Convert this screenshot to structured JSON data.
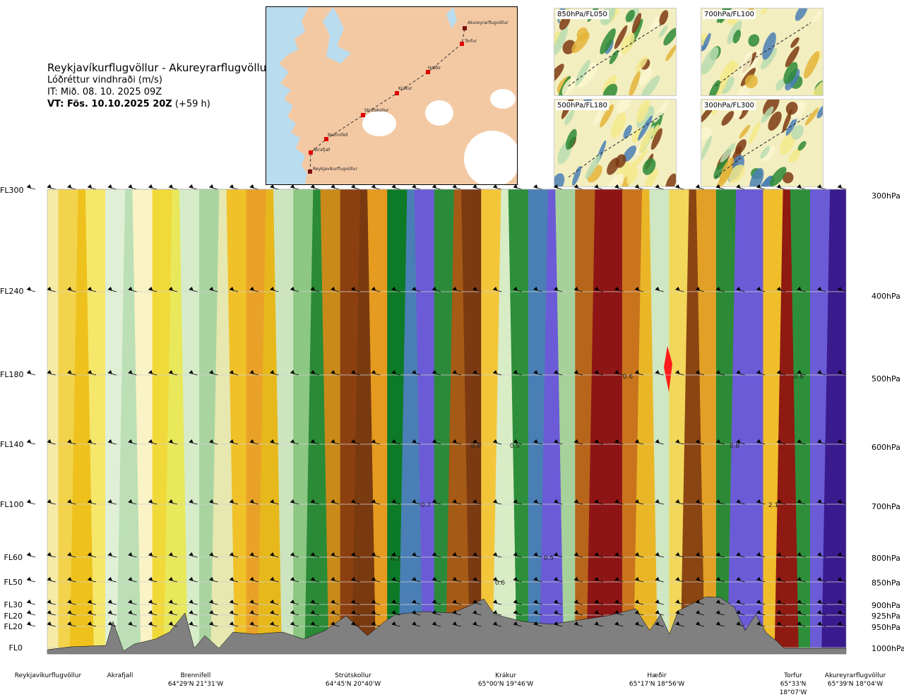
{
  "header": {
    "route": "Reykjavíkurflugvöllur - Akureyrarflugvöllur",
    "subtitle": "Lóðréttur vindhraði (m/s)",
    "issue_time": "IT: Mið. 08. 10. 2025 09Z",
    "valid_time_bold": "VT: Fös. 10.10.2025 20Z",
    "valid_time_offset": "(+59 h)"
  },
  "map": {
    "points": [
      "Akureyrarflugvöllur",
      "Torfur",
      "Hæðir",
      "Krákur",
      "Strútskollur",
      "Brennifell",
      "Akrafjall",
      "Reykjavíkurflugvöllur"
    ],
    "colors": {
      "sea": "#b9dcef",
      "land": "#f3c9a4",
      "glacier": "#ffffff",
      "route": "#333333",
      "marker": "#e00000"
    }
  },
  "thumbnails": [
    {
      "label": "850hPa/FL050"
    },
    {
      "label": "700hPa/FL100"
    },
    {
      "label": "500hPa/FL180"
    },
    {
      "label": "300hPa/FL300"
    }
  ],
  "chart_data": {
    "type": "heatmap",
    "title": "Lóðréttur vindhraði (m/s)",
    "xlabel": "",
    "ylabel": "",
    "flight_levels": [
      "FL300",
      "FL240",
      "FL180",
      "FL140",
      "FL100",
      "FL60",
      "FL50",
      "FL30",
      "FL20",
      "FL20",
      "FL0"
    ],
    "pressure_levels": [
      "300hPa",
      "400hPa",
      "500hPa",
      "600hPa",
      "700hPa",
      "800hPa",
      "850hPa",
      "900hPa",
      "925hPa",
      "950hPa",
      "1000hPa"
    ],
    "stations": [
      {
        "name": "Reykjavíkurflugvöllur",
        "coord": ""
      },
      {
        "name": "Akrafjall",
        "coord": ""
      },
      {
        "name": "Brennifell",
        "coord": "64°29'N 21°31'W"
      },
      {
        "name": "Strútskollur",
        "coord": "64°45'N 20°40'W"
      },
      {
        "name": "Krákur",
        "coord": "65°00'N 19°46'W"
      },
      {
        "name": "Hæðir",
        "coord": "65°17'N 18°56'W"
      },
      {
        "name": "Torfur",
        "coord": "65°33'N 18°07'W"
      },
      {
        "name": "Akureyrarflugvöllur",
        "coord": "65°39'N 18°04'W"
      }
    ],
    "value_labels": [
      "0.7",
      "0.7",
      "0.6",
      "0.5",
      "0.6",
      "0.5",
      "0.8",
      "0.6",
      "0.6",
      "2.1"
    ],
    "bands": [
      {
        "color": "#f6eaa6"
      },
      {
        "color": "#f2d34b"
      },
      {
        "color": "#eec11d"
      },
      {
        "color": "#f5e76a"
      },
      {
        "color": "#dff0d7"
      },
      {
        "color": "#bcdfb5"
      },
      {
        "color": "#f9f3c5"
      },
      {
        "color": "#f1d93a"
      },
      {
        "color": "#e8e85a"
      },
      {
        "color": "#d6ecc9"
      },
      {
        "color": "#a9d4a0"
      },
      {
        "color": "#e6e8b0"
      },
      {
        "color": "#f1c12a"
      },
      {
        "color": "#e9a227"
      },
      {
        "color": "#e7b81c"
      },
      {
        "color": "#cde5be"
      },
      {
        "color": "#8cc784"
      },
      {
        "color": "#2a8a36"
      },
      {
        "color": "#c98a1a"
      },
      {
        "color": "#8c4010"
      },
      {
        "color": "#7a3a10"
      },
      {
        "color": "#e59b20"
      },
      {
        "color": "#0c7a26"
      },
      {
        "color": "#4a7fb5"
      },
      {
        "color": "#6b5bd6"
      },
      {
        "color": "#2b8a3a"
      },
      {
        "color": "#a55a15"
      },
      {
        "color": "#7c3a12"
      },
      {
        "color": "#f3c63a"
      },
      {
        "color": "#d8ecc6"
      },
      {
        "color": "#2d8f3a"
      },
      {
        "color": "#4a7fb5"
      },
      {
        "color": "#6b5bd6"
      },
      {
        "color": "#a6d19a"
      },
      {
        "color": "#b7651a"
      },
      {
        "color": "#8e1515"
      },
      {
        "color": "#8e1515"
      },
      {
        "color": "#c9741d"
      },
      {
        "color": "#eab627"
      },
      {
        "color": "#cfe7c2"
      },
      {
        "color": "#f2d75a"
      },
      {
        "color": "#8b4512"
      },
      {
        "color": "#e2a126"
      },
      {
        "color": "#2c8a36"
      },
      {
        "color": "#6b5bd6"
      },
      {
        "color": "#6b5bd6"
      },
      {
        "color": "#f0be2a"
      },
      {
        "color": "#8e1a12"
      },
      {
        "color": "#2d8f3a"
      },
      {
        "color": "#6b5bd6"
      },
      {
        "color": "#3a1b8e"
      }
    ],
    "terrain_color": "#808080"
  }
}
